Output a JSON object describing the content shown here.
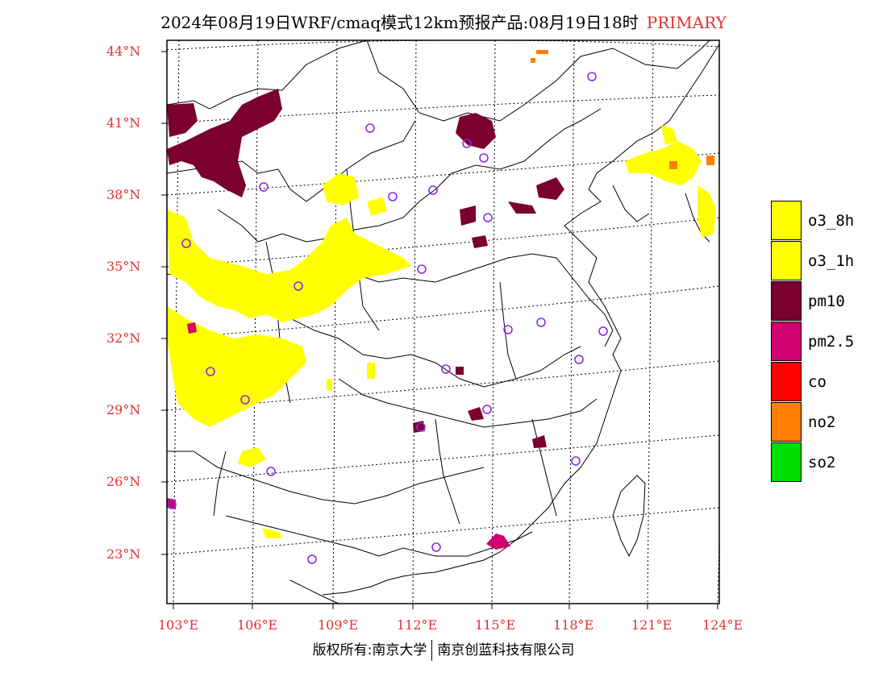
{
  "title": {
    "main": "2024年08月19日WRF/cmaq模式12km预报产品:08月19日18时",
    "tag": "PRIMARY"
  },
  "axes": {
    "lat_labels": [
      "44°N",
      "41°N",
      "38°N",
      "35°N",
      "32°N",
      "29°N",
      "26°N",
      "23°N"
    ],
    "lon_labels": [
      "103°E",
      "106°E",
      "109°E",
      "112°E",
      "115°E",
      "118°E",
      "121°E",
      "124°E"
    ]
  },
  "legend": [
    {
      "label": "o3_8h",
      "color": "#ffff00"
    },
    {
      "label": "o3_1h",
      "color": "#ffff00"
    },
    {
      "label": "pm10",
      "color": "#7a0030"
    },
    {
      "label": "pm2.5",
      "color": "#d0006f"
    },
    {
      "label": "co",
      "color": "#ff0000"
    },
    {
      "label": "no2",
      "color": "#ff8000"
    },
    {
      "label": "so2",
      "color": "#00dd00"
    }
  ],
  "copyright": {
    "left": "版权所有:南京大学",
    "right": "南京创蓝科技有限公司"
  }
}
